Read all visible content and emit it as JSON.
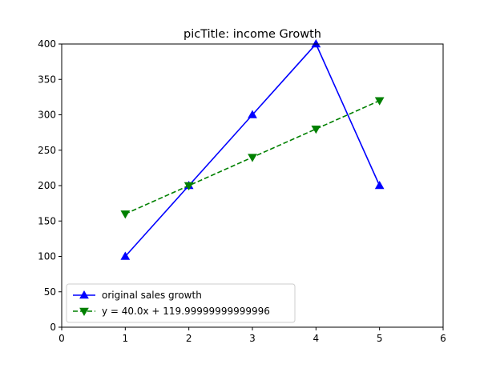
{
  "chart_data": {
    "type": "line",
    "title": "picTitle: income Growth",
    "xlabel": "",
    "ylabel": "",
    "xlim": [
      0,
      6
    ],
    "ylim": [
      0,
      400
    ],
    "xticks": [
      0,
      1,
      2,
      3,
      4,
      5,
      6
    ],
    "yticks": [
      0,
      50,
      100,
      150,
      200,
      250,
      300,
      350,
      400
    ],
    "grid": false,
    "legend_position": "lower-left",
    "series": [
      {
        "name": "original sales growth",
        "x": [
          1,
          2,
          3,
          4,
          5
        ],
        "y": [
          100,
          200,
          300,
          400,
          200
        ],
        "color": "#0000ff",
        "line_style": "solid",
        "marker": "triangle-up"
      },
      {
        "name": "y = 40.0x + 119.99999999999996",
        "x": [
          1,
          2,
          3,
          4,
          5
        ],
        "y": [
          160,
          200,
          240,
          280,
          320
        ],
        "color": "#008000",
        "line_style": "dashed",
        "marker": "triangle-down"
      }
    ]
  }
}
